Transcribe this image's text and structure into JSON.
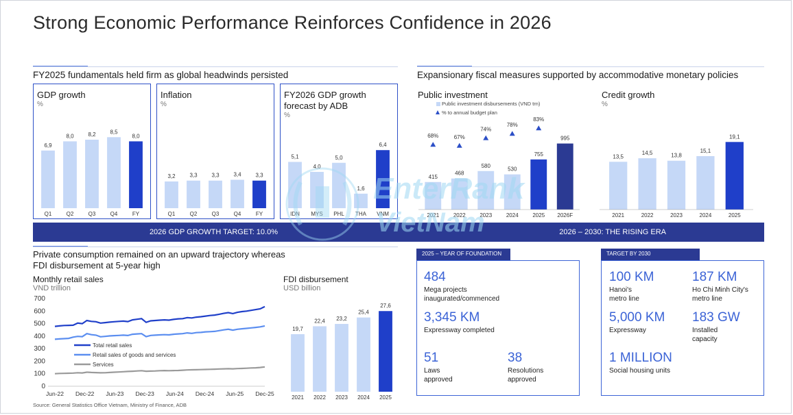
{
  "title": "Strong Economic Performance Reinforces Confidence in 2026",
  "left_section": {
    "heading": "FY2025 fundamentals held firm as global headwinds persisted"
  },
  "right_section": {
    "heading": "Expansionary fiscal measures supported by accommodative monetary policies"
  },
  "bands": {
    "left": "2026 GDP GROWTH TARGET: 10.0%",
    "right": "2026 – 2030: THE RISING ERA"
  },
  "consumption_section": {
    "heading_line1": "Private consumption remained on an upward trajectory whereas",
    "heading_line2": "FDI disbursement at 5-year high"
  },
  "source": "Source: General Statistics Office Vietnam, Ministry of Finance, ADB",
  "watermark": {
    "brand": "EnterRank",
    "sub": "VietNam"
  },
  "colors": {
    "light_bar": "#c5d8f7",
    "dark_bar": "#1f3fc9",
    "navy": "#2b3a93",
    "accent": "#3b63d6"
  },
  "chart_data": [
    {
      "id": "gdp",
      "type": "bar",
      "title": "GDP growth",
      "unit": "%",
      "categories": [
        "Q1",
        "Q2",
        "Q3",
        "Q4",
        "FY"
      ],
      "values": [
        6.9,
        8.0,
        8.2,
        8.5,
        8.0
      ],
      "labels": [
        "6,9",
        "8,0",
        "8,2",
        "8,5",
        "8,0"
      ],
      "highlight": [
        4
      ],
      "ylim": [
        0,
        10
      ]
    },
    {
      "id": "inflation",
      "type": "bar",
      "title": "Inflation",
      "unit": "%",
      "categories": [
        "Q1",
        "Q2",
        "Q3",
        "Q4",
        "FY"
      ],
      "values": [
        3.2,
        3.3,
        3.3,
        3.4,
        3.3
      ],
      "labels": [
        "3,2",
        "3,3",
        "3,3",
        "3,4",
        "3,3"
      ],
      "highlight": [
        4
      ],
      "ylim": [
        0,
        10
      ]
    },
    {
      "id": "adb",
      "type": "bar",
      "title_line1": "FY2026 GDP growth",
      "title_line2": "forecast by ADB",
      "unit": "%",
      "categories": [
        "IDN",
        "MYS",
        "PHL",
        "THA",
        "VNM"
      ],
      "values": [
        5.1,
        4.0,
        5.0,
        1.6,
        6.4
      ],
      "labels": [
        "5,1",
        "4,0",
        "5,0",
        "1,6",
        "6,4"
      ],
      "highlight": [
        4
      ],
      "ylim": [
        0,
        8
      ]
    },
    {
      "id": "public_investment",
      "type": "bar",
      "title": "Public investment",
      "legend": [
        "Public investment disbursements (VND trn)",
        "% to annual budget plan"
      ],
      "categories": [
        "2021",
        "2022",
        "2023",
        "2024",
        "2025",
        "2026F"
      ],
      "values": [
        415,
        468,
        580,
        530,
        755,
        995
      ],
      "labels": [
        "415",
        "468",
        "580",
        "530",
        "755",
        "995"
      ],
      "pct_values": [
        68,
        67,
        74,
        78,
        83
      ],
      "pct_labels": [
        "68%",
        "67%",
        "74%",
        "78%",
        "83%"
      ],
      "highlight": [
        4
      ],
      "highlight_navy": [
        5
      ],
      "ylim": [
        0,
        1300
      ]
    },
    {
      "id": "credit",
      "type": "bar",
      "title": "Credit growth",
      "unit": "%",
      "categories": [
        "2021",
        "2022",
        "2023",
        "2024",
        "2025"
      ],
      "values": [
        13.5,
        14.5,
        13.8,
        15.1,
        19.1
      ],
      "labels": [
        "13,5",
        "14,5",
        "13,8",
        "15,1",
        "19,1"
      ],
      "highlight": [
        4
      ],
      "ylim": [
        0,
        24
      ]
    },
    {
      "id": "retail",
      "type": "line",
      "title": "Monthly retail sales",
      "unit": "VND trillion",
      "yticks": [
        0,
        100,
        200,
        300,
        400,
        500,
        600,
        700
      ],
      "ylim": [
        0,
        700
      ],
      "xticks": [
        "Jun-22",
        "Dec-22",
        "Jun-23",
        "Dec-23",
        "Jun-24",
        "Dec-24",
        "Jun-25",
        "Dec-25"
      ],
      "series": [
        {
          "name": "Total retail sales",
          "color": "#1f3fc9",
          "values": [
            478,
            482,
            485,
            486,
            487,
            504,
            500,
            525,
            518,
            515,
            504,
            508,
            512,
            515,
            518,
            520,
            516,
            530,
            535,
            540,
            510,
            522,
            525,
            528,
            530,
            528,
            534,
            538,
            540,
            548,
            545,
            552,
            555,
            560,
            565,
            568,
            575,
            582,
            588,
            580,
            590,
            596,
            600,
            606,
            612,
            618,
            636
          ]
        },
        {
          "name": "Retail sales of goods and services",
          "color": "#5b8ef0",
          "values": [
            375,
            378,
            380,
            382,
            392,
            398,
            396,
            420,
            412,
            408,
            395,
            398,
            402,
            404,
            406,
            408,
            405,
            415,
            418,
            420,
            396,
            406,
            408,
            410,
            412,
            410,
            415,
            418,
            420,
            426,
            422,
            428,
            430,
            434,
            436,
            438,
            444,
            450,
            455,
            448,
            455,
            459,
            462,
            466,
            470,
            474,
            482
          ]
        },
        {
          "name": "Services",
          "color": "#9a9a9a",
          "values": [
            100,
            102,
            103,
            104,
            105,
            108,
            106,
            112,
            110,
            109,
            107,
            108,
            110,
            112,
            114,
            116,
            118,
            120,
            122,
            124,
            120,
            121,
            122,
            124,
            125,
            124,
            125,
            126,
            128,
            130,
            131,
            132,
            133,
            134,
            135,
            136,
            138,
            139,
            140,
            139,
            141,
            142,
            144,
            146,
            147,
            150,
            154
          ]
        }
      ]
    },
    {
      "id": "fdi",
      "type": "bar",
      "title": "FDI disbursement",
      "unit": "USD billion",
      "categories": [
        "2021",
        "2022",
        "2023",
        "2024",
        "2025"
      ],
      "values": [
        19.7,
        22.4,
        23.2,
        25.4,
        27.6
      ],
      "labels": [
        "19,7",
        "22,4",
        "23,2",
        "25,4",
        "27,6"
      ],
      "highlight": [
        4
      ],
      "ylim": [
        0,
        30
      ]
    }
  ],
  "foundation": {
    "tab": "2025 – YEAR OF FOUNDATION",
    "stats": [
      {
        "value": "484",
        "label1": "Mega projects",
        "label2": "inaugurated/commenced"
      },
      {
        "value": "3,345 KM",
        "label1": "Expressway completed",
        "label2": ""
      },
      {
        "value": "51",
        "label1": "Laws",
        "label2": "approved"
      },
      {
        "value": "38",
        "label1": "Resolutions",
        "label2": "approved"
      }
    ]
  },
  "target": {
    "tab": "TARGET BY 2030",
    "stats": [
      {
        "value": "100 KM",
        "label1": "Hanoi's",
        "label2": "metro line"
      },
      {
        "value": "187 KM",
        "label1": "Ho Chi Minh City's",
        "label2": "metro line"
      },
      {
        "value": "5,000 KM",
        "label1": "Expressway",
        "label2": ""
      },
      {
        "value": "183 GW",
        "label1": "Installed",
        "label2": "capacity"
      },
      {
        "value": "1 MILLION",
        "label1": "Social housing units",
        "label2": ""
      }
    ]
  }
}
